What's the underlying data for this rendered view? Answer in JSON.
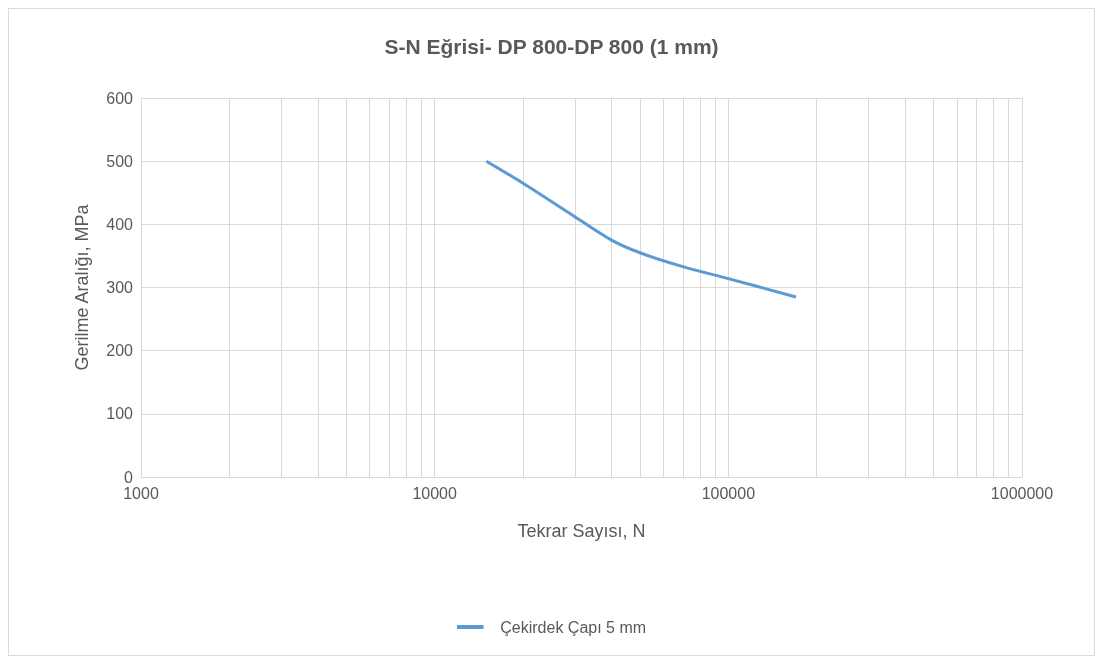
{
  "chart_data": {
    "type": "line",
    "title": "S-N Eğrisi- DP 800-DP 800 (1 mm)",
    "xlabel": "Tekrar Sayısı, N",
    "ylabel": "Gerilme Aralığı, MPa",
    "log": "x",
    "grid": true,
    "legend": "bottom",
    "marker": "none",
    "line_style": "solid",
    "xlim": [
      1000,
      1000000
    ],
    "xticks": [
      1000,
      {
        "value": 2000,
        "label": null
      },
      {
        "value": 3000,
        "label": null
      },
      {
        "value": 4000,
        "label": null
      },
      {
        "value": 5000,
        "label": null
      },
      {
        "value": 6000,
        "label": null
      },
      {
        "value": 7000,
        "label": null
      },
      {
        "value": 8000,
        "label": null
      },
      {
        "value": 9000,
        "label": null
      },
      10000,
      {
        "value": 20000,
        "label": null
      },
      {
        "value": 30000,
        "label": null
      },
      {
        "value": 40000,
        "label": null
      },
      {
        "value": 50000,
        "label": null
      },
      {
        "value": 60000,
        "label": null
      },
      {
        "value": 70000,
        "label": null
      },
      {
        "value": 80000,
        "label": null
      },
      {
        "value": 90000,
        "label": null
      },
      100000,
      {
        "value": 200000,
        "label": null
      },
      {
        "value": 300000,
        "label": null
      },
      {
        "value": 400000,
        "label": null
      },
      {
        "value": 500000,
        "label": null
      },
      {
        "value": 600000,
        "label": null
      },
      {
        "value": 700000,
        "label": null
      },
      {
        "value": 800000,
        "label": null
      },
      {
        "value": 900000,
        "label": null
      },
      1000000
    ],
    "ylim": [
      0,
      600
    ],
    "yticks": [
      0,
      100,
      200,
      300,
      400,
      500,
      600
    ],
    "series": [
      {
        "name": "Çekirdek Çapı 5 mm",
        "color": "#5b9bd5",
        "x": [
          15000,
          20000,
          30000,
          40000,
          50000,
          70000,
          100000,
          170000
        ],
        "values": [
          500,
          465,
          412,
          375,
          355,
          333,
          314,
          285
        ]
      }
    ]
  }
}
